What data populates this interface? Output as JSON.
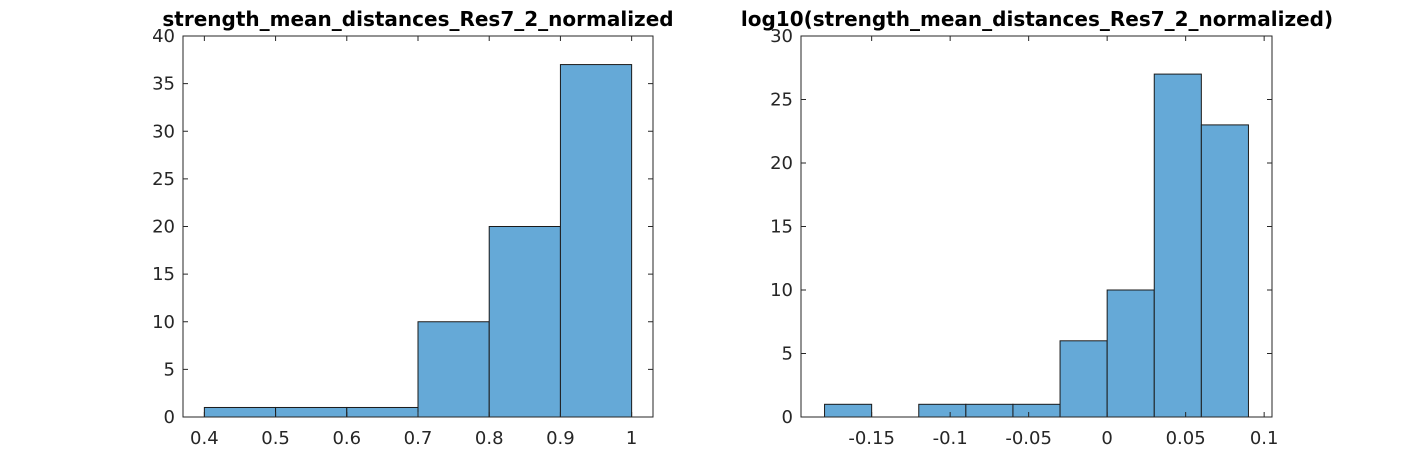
{
  "chart_data": [
    {
      "type": "bar",
      "title": "strength_mean_distances_Res7_2_normalized",
      "xlabel": "",
      "ylabel": "",
      "bin_edges": [
        0.4,
        0.5,
        0.6,
        0.7,
        0.8,
        0.9,
        1.0
      ],
      "values": [
        1,
        1,
        1,
        10,
        20,
        37
      ],
      "xlim": [
        0.37,
        1.03
      ],
      "ylim": [
        0,
        40
      ],
      "xticks": [
        0.4,
        0.5,
        0.6,
        0.7,
        0.8,
        0.9,
        1.0
      ],
      "xtick_labels": [
        "0.4",
        "0.5",
        "0.6",
        "0.7",
        "0.8",
        "0.9",
        "1"
      ],
      "yticks": [
        0,
        5,
        10,
        15,
        20,
        25,
        30,
        35,
        40
      ],
      "ytick_labels": [
        "0",
        "5",
        "10",
        "15",
        "20",
        "25",
        "30",
        "35",
        "40"
      ],
      "bar_color": "#65a9d7",
      "grid": false
    },
    {
      "type": "bar",
      "title": "log10(strength_mean_distances_Res7_2_normalized)",
      "xlabel": "",
      "ylabel": "",
      "bin_edges": [
        -0.18,
        -0.15,
        -0.12,
        -0.09,
        -0.06,
        -0.03,
        0.0,
        0.03,
        0.06,
        0.09
      ],
      "values": [
        1,
        0,
        1,
        1,
        1,
        6,
        10,
        27,
        23
      ],
      "xlim": [
        -0.195,
        0.105
      ],
      "ylim": [
        0,
        30
      ],
      "xticks": [
        -0.15,
        -0.1,
        -0.05,
        0,
        0.05,
        0.1
      ],
      "xtick_labels": [
        "-0.15",
        "-0.1",
        "-0.05",
        "0",
        "0.05",
        "0.1"
      ],
      "yticks": [
        0,
        5,
        10,
        15,
        20,
        25,
        30
      ],
      "ytick_labels": [
        "0",
        "5",
        "10",
        "15",
        "20",
        "25",
        "30"
      ],
      "bar_color": "#65a9d7",
      "grid": false
    }
  ]
}
